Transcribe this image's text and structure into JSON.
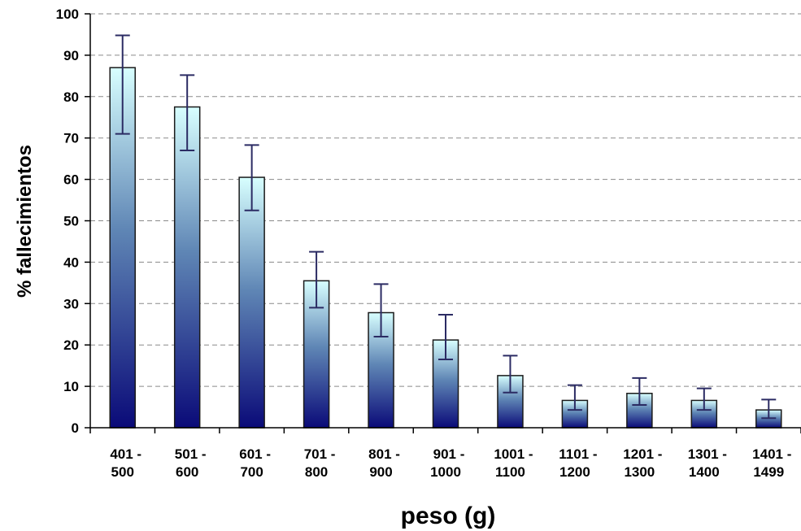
{
  "chart_data": {
    "type": "bar",
    "xlabel": "peso (g)",
    "ylabel": "% fallecimientos",
    "ylim": [
      0,
      100
    ],
    "yticks": [
      0,
      10,
      20,
      30,
      40,
      50,
      60,
      70,
      80,
      90,
      100
    ],
    "grid": "horizontal dashed",
    "categories": [
      [
        "401 -",
        "500"
      ],
      [
        "501 -",
        "600"
      ],
      [
        "601 -",
        "700"
      ],
      [
        "701 -",
        "800"
      ],
      [
        "801 -",
        "900"
      ],
      [
        "901 -",
        "1000"
      ],
      [
        "1001 -",
        "1100"
      ],
      [
        "1101 -",
        "1200"
      ],
      [
        "1201 -",
        "1300"
      ],
      [
        "1301 -",
        "1400"
      ],
      [
        "1401 -",
        "1499"
      ]
    ],
    "values": [
      87,
      77.5,
      60.5,
      35.5,
      27.8,
      21.2,
      12.6,
      6.6,
      8.3,
      6.6,
      4.3
    ],
    "error_low": [
      71,
      67,
      52.5,
      29,
      22,
      16.5,
      8.5,
      4.3,
      5.5,
      4.3,
      2.3
    ],
    "error_high": [
      94.8,
      85.2,
      68.3,
      42.5,
      34.7,
      27.3,
      17.4,
      10.3,
      12,
      9.5,
      6.8
    ],
    "colors": {
      "bar_top": "#d8ffff",
      "bar_mid": "#5f86b5",
      "bar_bottom": "#0a0a78",
      "bar_outline": "#1a1a1a",
      "error_bar": "#2b2b63",
      "grid": "#8a8a8a"
    }
  }
}
